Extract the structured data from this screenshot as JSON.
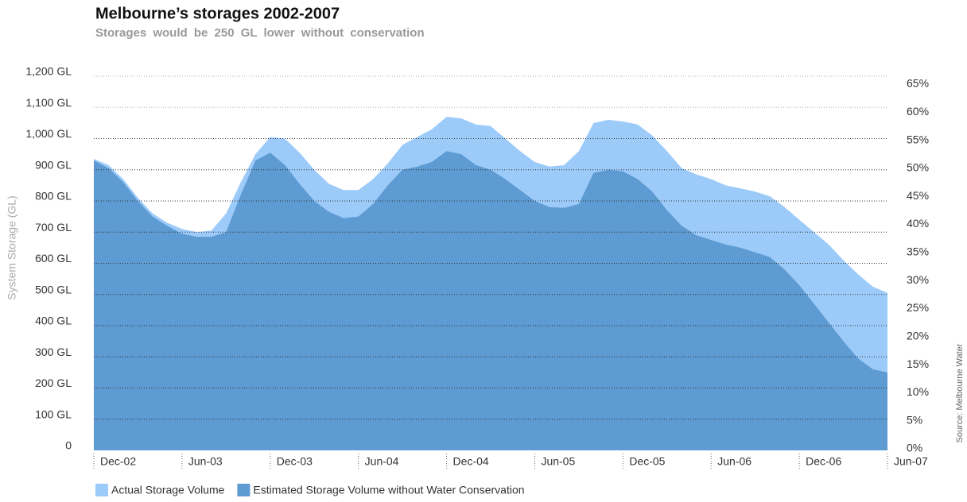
{
  "chart_data": {
    "type": "area",
    "title": "Melbourne’s  storages  2002-2007",
    "subtitle": "Storages  would  be  250  GL  lower  without  conservation",
    "y_label": "System Storage (GL)",
    "source": "Source:  Melbourne  Water",
    "categories": [
      "Dec-02",
      null,
      null,
      null,
      null,
      null,
      "Jun-03",
      null,
      null,
      null,
      null,
      null,
      "Dec-03",
      null,
      null,
      null,
      null,
      null,
      "Jun-04",
      null,
      null,
      null,
      null,
      null,
      "Dec-04",
      null,
      null,
      null,
      null,
      null,
      "Jun-05",
      null,
      null,
      null,
      null,
      null,
      "Dec-05",
      null,
      null,
      null,
      null,
      null,
      "Jun-06",
      null,
      null,
      null,
      null,
      null,
      "Dec-06",
      null,
      null,
      null,
      null,
      null,
      "Jun-07"
    ],
    "series": [
      {
        "name": "Actual Storage Volume",
        "color": "#9ccbfa",
        "values": [
          935,
          915,
          870,
          810,
          760,
          730,
          710,
          700,
          705,
          760,
          860,
          950,
          1005,
          1000,
          955,
          900,
          855,
          835,
          835,
          870,
          920,
          980,
          1005,
          1030,
          1070,
          1065,
          1045,
          1040,
          1000,
          960,
          925,
          910,
          915,
          960,
          1050,
          1060,
          1055,
          1045,
          1010,
          960,
          905,
          885,
          870,
          850,
          840,
          830,
          815,
          780,
          740,
          700,
          660,
          610,
          565,
          525,
          505
        ]
      },
      {
        "name": "Estimated Storage Volume without Water Conservation",
        "color": "#5e9bd3",
        "values": [
          930,
          905,
          860,
          800,
          750,
          720,
          695,
          685,
          685,
          700,
          820,
          930,
          955,
          915,
          855,
          800,
          765,
          745,
          750,
          790,
          850,
          900,
          910,
          925,
          960,
          950,
          915,
          900,
          870,
          835,
          800,
          780,
          778,
          790,
          890,
          900,
          895,
          870,
          830,
          770,
          720,
          690,
          675,
          660,
          650,
          635,
          620,
          580,
          530,
          470,
          410,
          350,
          295,
          260,
          250
        ]
      }
    ],
    "ylim": [
      0,
      1200
    ],
    "yticks": [
      0,
      {
        "value": 100,
        "label": "100 GL"
      },
      {
        "value": 200,
        "label": "200 GL"
      },
      {
        "value": 300,
        "label": "300 GL"
      },
      {
        "value": 400,
        "label": "400 GL"
      },
      {
        "value": 500,
        "label": "500 GL"
      },
      {
        "value": 600,
        "label": "600 GL"
      },
      {
        "value": 700,
        "label": "700 GL"
      },
      {
        "value": 800,
        "label": "800 GL"
      },
      {
        "value": 900,
        "label": "900 GL"
      },
      {
        "value": 1000,
        "label": "1,000 GL"
      },
      {
        "value": 1100,
        "label": "1,100 GL"
      },
      {
        "value": 1200,
        "label": "1,200 GL"
      }
    ],
    "y2lim": [
      0,
      66.7
    ],
    "y2ticks": [
      {
        "value": 0,
        "label": "0%"
      },
      {
        "value": 5,
        "label": "5%"
      },
      {
        "value": 10,
        "label": "10%"
      },
      {
        "value": 15,
        "label": "15%"
      },
      {
        "value": 20,
        "label": "20%"
      },
      {
        "value": 25,
        "label": "25%"
      },
      {
        "value": 30,
        "label": "30%"
      },
      {
        "value": 35,
        "label": "35%"
      },
      {
        "value": 40,
        "label": "40%"
      },
      {
        "value": 45,
        "label": "45%"
      },
      {
        "value": 50,
        "label": "50%"
      },
      {
        "value": 55,
        "label": "55%"
      },
      {
        "value": 60,
        "label": "60%"
      },
      {
        "value": 65,
        "label": "65%"
      }
    ],
    "grid": true,
    "legend": "bottom"
  }
}
